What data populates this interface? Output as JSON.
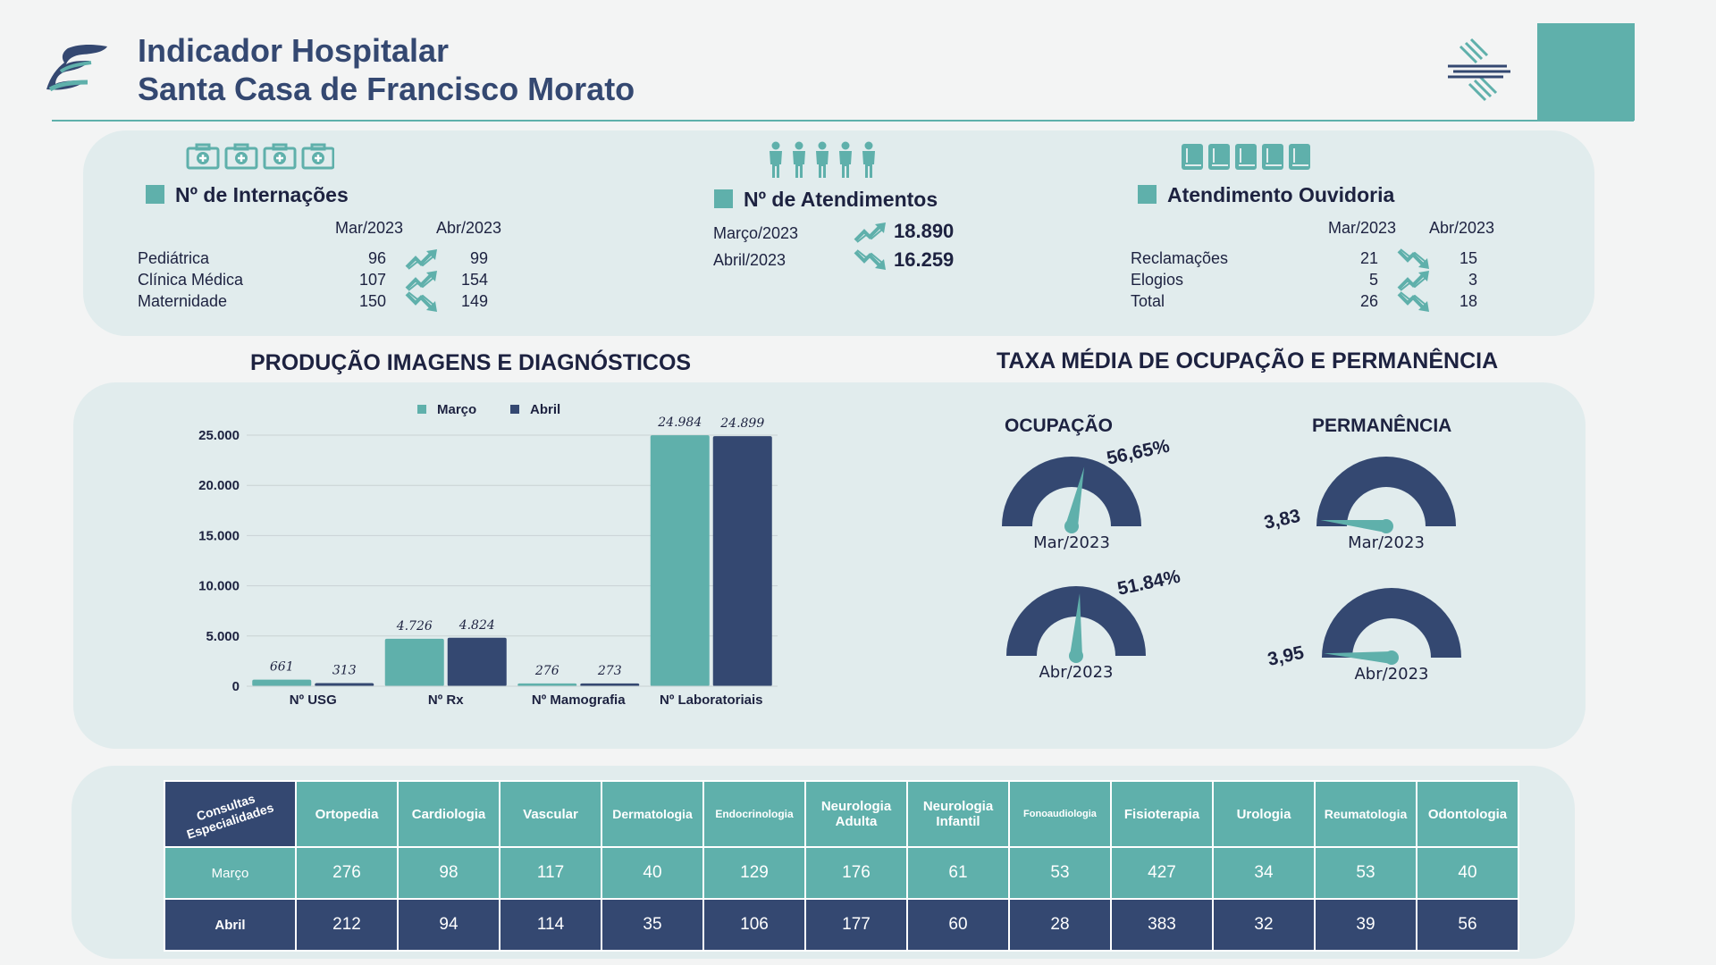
{
  "header": {
    "title_line1": "Indicador Hospitalar",
    "title_line2": "Santa Casa de Francisco Morato"
  },
  "colors": {
    "teal": "#5fb0ab",
    "navy": "#344871",
    "panel": "#e1eced"
  },
  "internacoes": {
    "title": "Nº de Internações",
    "col1": "Mar/2023",
    "col2": "Abr/2023",
    "rows": [
      {
        "label": "Pediátrica",
        "mar": "96",
        "abr": "99",
        "trend": "up"
      },
      {
        "label": "Clínica Médica",
        "mar": "107",
        "abr": "154",
        "trend": "up"
      },
      {
        "label": "Maternidade",
        "mar": "150",
        "abr": "149",
        "trend": "down"
      }
    ]
  },
  "atendimentos": {
    "title": "Nº de Atendimentos",
    "rows": [
      {
        "label": "Março/2023",
        "value": "18.890",
        "trend": "up"
      },
      {
        "label": "Abril/2023",
        "value": "16.259",
        "trend": "down"
      }
    ]
  },
  "ouvidoria": {
    "title": "Atendimento Ouvidoria",
    "col1": "Mar/2023",
    "col2": "Abr/2023",
    "rows": [
      {
        "label": "Reclamações",
        "mar": "21",
        "abr": "15",
        "trend": "down"
      },
      {
        "label": "Elogios",
        "mar": "5",
        "abr": "3",
        "trend": "up"
      },
      {
        "label": "Total",
        "mar": "26",
        "abr": "18",
        "trend": "down"
      }
    ]
  },
  "chart_titles": {
    "producao": "PRODUÇÃO IMAGENS E DIAGNÓSTICOS",
    "taxa": "TAXA MÉDIA DE OCUPAÇÃO E PERMANÊNCIA"
  },
  "chart_data": [
    {
      "type": "bar",
      "title": "PRODUÇÃO IMAGENS E DIAGNÓSTICOS",
      "categories": [
        "Nº USG",
        "Nº  Rx",
        "Nº Mamografia",
        "Nº Laboratoriais"
      ],
      "series": [
        {
          "name": "Março",
          "color": "#5fb0ab",
          "values": [
            661,
            4726,
            276,
            24984
          ],
          "labels": [
            "661",
            "4.726",
            "276",
            "24.984"
          ]
        },
        {
          "name": "Abril",
          "color": "#344871",
          "values": [
            313,
            4824,
            273,
            24899
          ],
          "labels": [
            "313",
            "4.824",
            "273",
            "24.899"
          ]
        }
      ],
      "ylim": [
        0,
        25000
      ],
      "yticks": [
        "0",
        "5.000",
        "10.000",
        "15.000",
        "20.000",
        "25.000"
      ],
      "ytick_values": [
        0,
        5000,
        10000,
        15000,
        20000,
        25000
      ],
      "grid": true,
      "legend": "top"
    },
    {
      "type": "gauge",
      "title": "TAXA MÉDIA DE OCUPAÇÃO E PERMANÊNCIA",
      "ocupacao": {
        "title": "OCUPAÇÃO",
        "mar": {
          "label": "Mar/2023",
          "value": "56,65%",
          "fraction": 0.5665
        },
        "abr": {
          "label": "Abr/2023",
          "value": "51.84%",
          "fraction": 0.5184
        }
      },
      "permanencia": {
        "title": "PERMANÊNCIA",
        "mar": {
          "label": "Mar/2023",
          "value": "3,83"
        },
        "abr": {
          "label": "Abr/2023",
          "value": "3,95"
        }
      }
    }
  ],
  "consultas": {
    "corner": "Consultas Especialidades",
    "headers": [
      "Ortopedia",
      "Cardiologia",
      "Vascular",
      "Dermatologia",
      "Endocrinologia",
      "Neurologia Adulta",
      "Neurologia Infantil",
      "Fonoaudiologia",
      "Fisioterapia",
      "Urologia",
      "Reumatologia",
      "Odontologia"
    ],
    "marco_label": "Março",
    "abril_label": "Abril",
    "marco": [
      "276",
      "98",
      "117",
      "40",
      "129",
      "176",
      "61",
      "53",
      "427",
      "34",
      "53",
      "40"
    ],
    "abril": [
      "212",
      "94",
      "114",
      "35",
      "106",
      "177",
      "60",
      "28",
      "383",
      "32",
      "39",
      "56"
    ]
  }
}
